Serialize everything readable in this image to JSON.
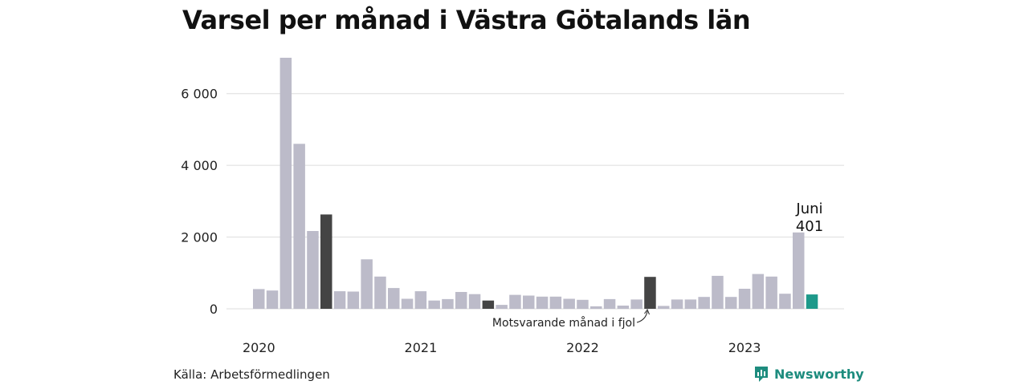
{
  "title": "Varsel per månad i Västra Götalands län",
  "source": "Källa: Arbetsförmedlingen",
  "brand": {
    "name": "Newsworthy",
    "icon": "newsworthy-bar-icon",
    "color": "#1d8c7e"
  },
  "colors": {
    "default_bar": "#bcbbc9",
    "same_month_bar": "#444444",
    "current_bar": "#1d998a",
    "grid": "#dddddd"
  },
  "chart_data": {
    "type": "bar",
    "title": "Varsel per månad i Västra Götalands län",
    "xlabel": "",
    "ylabel": "",
    "ylim": [
      0,
      7000
    ],
    "yticks": [
      0,
      2000,
      4000,
      6000
    ],
    "ytick_labels": [
      "0",
      "2 000",
      "4 000",
      "6 000"
    ],
    "x_tick_labels": [
      "2020",
      "2021",
      "2022",
      "2023"
    ],
    "grid": true,
    "start_month": "2020-01",
    "values": [
      550,
      510,
      7000,
      4600,
      2170,
      2630,
      490,
      480,
      1380,
      900,
      580,
      280,
      490,
      230,
      270,
      470,
      410,
      230,
      110,
      390,
      370,
      340,
      340,
      280,
      250,
      70,
      270,
      90,
      260,
      890,
      80,
      260,
      260,
      330,
      920,
      330,
      560,
      970,
      900,
      420,
      2130,
      401
    ],
    "bar_highlight": [
      "default",
      "default",
      "default",
      "default",
      "default",
      "same_month",
      "default",
      "default",
      "default",
      "default",
      "default",
      "default",
      "default",
      "default",
      "default",
      "default",
      "default",
      "same_month",
      "default",
      "default",
      "default",
      "default",
      "default",
      "default",
      "default",
      "default",
      "default",
      "default",
      "default",
      "same_month",
      "default",
      "default",
      "default",
      "default",
      "default",
      "default",
      "default",
      "default",
      "default",
      "default",
      "default",
      "current"
    ],
    "annotations": {
      "current_month": "Juni",
      "current_value": "401",
      "same_month_note": "Motsvarande månad i fjol"
    }
  }
}
